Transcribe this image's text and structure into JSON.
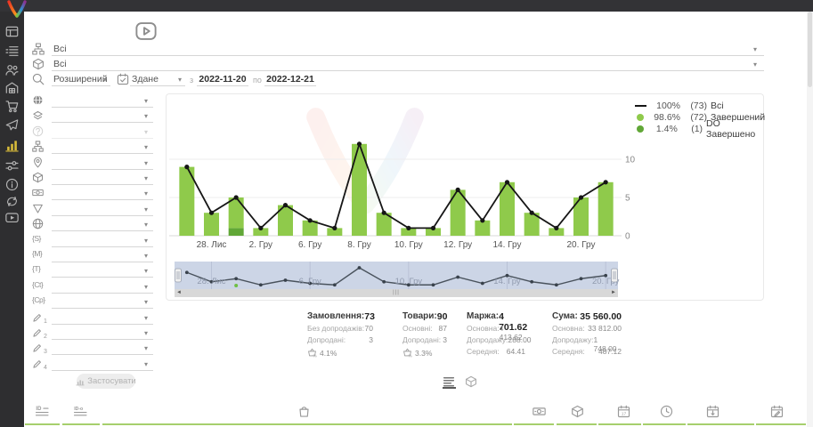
{
  "colors": {
    "bar_light": "#8fca4b",
    "bar_dark": "#61a737",
    "line": "#161616",
    "sidebar_active": "#d9bc3a",
    "navigator_bg": "#ccd5e6",
    "table_green": "#a6cf6d"
  },
  "sidebar": {
    "items": [
      {
        "icon": "dashboard"
      },
      {
        "icon": "orders-list"
      },
      {
        "icon": "customers"
      },
      {
        "icon": "warehouse"
      },
      {
        "icon": "cart"
      },
      {
        "icon": "campaigns"
      },
      {
        "icon": "analytics",
        "active": true
      },
      {
        "icon": "settings"
      },
      {
        "icon": "info"
      },
      {
        "icon": "sync"
      },
      {
        "icon": "video"
      }
    ]
  },
  "filters": {
    "top_rows": [
      {
        "icon": "sitemap",
        "value": "Всі"
      },
      {
        "icon": "package",
        "value": "Всі"
      }
    ],
    "search_row": {
      "mode": "Розширений",
      "date_type": "Здане",
      "from_label": "з",
      "from": "2022-11-20",
      "to_label": "по",
      "to": "2022-12-21"
    },
    "rows": [
      {
        "icon": "globe-solid"
      },
      {
        "icon": "layers-sort"
      },
      {
        "icon": "help",
        "disabled": true
      },
      {
        "icon": "sitemap"
      },
      {
        "icon": "map-pin"
      },
      {
        "icon": "package"
      },
      {
        "icon": "banknote"
      },
      {
        "icon": "funnel"
      },
      {
        "icon": "globe-wire"
      },
      {
        "brace": "{S}"
      },
      {
        "brace": "{M}"
      },
      {
        "brace": "{T}"
      },
      {
        "brace": "{Ct}"
      },
      {
        "brace": "{Cp}"
      },
      {
        "pencil": "1"
      },
      {
        "pencil": "2"
      },
      {
        "pencil": "3"
      },
      {
        "pencil": "4"
      }
    ],
    "apply_label": "Застосувати"
  },
  "chart_data": {
    "type": "bar",
    "title": "",
    "xlabel": "",
    "ylabel": "",
    "grid": true,
    "legend_position": "top-right",
    "yticks": [
      0,
      5,
      10
    ],
    "ylim": [
      0,
      12.5
    ],
    "x_labels": [
      "",
      "28. Лис",
      "",
      "2. Гру",
      "",
      "6. Гру",
      "",
      "8. Гру",
      "",
      "10. Гру",
      "",
      "12. Гру",
      "",
      "14. Гру",
      "",
      "",
      "20. Гру",
      ""
    ],
    "navigator_labels": [
      "",
      "28. Лис",
      "",
      "",
      "",
      "6. Гру",
      "",
      "",
      "",
      "10. Гру",
      "",
      "",
      "",
      "14. Гру",
      "",
      "",
      "",
      "20. Гру"
    ],
    "series": [
      {
        "name": "Всі",
        "type": "line",
        "color": "#161616",
        "values": [
          9,
          3,
          5,
          1,
          4,
          2,
          1,
          12,
          3,
          1,
          1,
          6,
          2,
          7,
          3,
          1,
          5,
          7
        ]
      },
      {
        "name": "Завершений",
        "type": "column",
        "color": "#8fca4b",
        "values": [
          9,
          3,
          4,
          1,
          4,
          2,
          1,
          12,
          3,
          1,
          1,
          6,
          2,
          7,
          3,
          1,
          5,
          7
        ]
      },
      {
        "name": "DO Завершено",
        "type": "column",
        "color": "#61a737",
        "values": [
          0,
          0,
          1,
          0,
          0,
          0,
          0,
          0,
          0,
          0,
          0,
          0,
          0,
          0,
          0,
          0,
          0,
          0
        ]
      }
    ],
    "legend": [
      {
        "marker": "line",
        "color": "#161616",
        "pct": "100%",
        "count": "(73)",
        "label": "Всі"
      },
      {
        "marker": "dot",
        "color": "#8fca4b",
        "pct": "98.6%",
        "count": "(72)",
        "label": "Завершений"
      },
      {
        "marker": "dot",
        "color": "#61a737",
        "pct": "1.4%",
        "count": "(1)",
        "label": "DO Завершено"
      }
    ]
  },
  "stats": {
    "blocks": [
      {
        "title": "Замовлення:",
        "value": "73",
        "rows": [
          [
            "Без допродажів:",
            "70"
          ],
          [
            "Допродані:",
            "3"
          ]
        ],
        "footer_icon": "basket-percent",
        "footer": "4.1%"
      },
      {
        "title": "Товари:",
        "value": "90",
        "rows": [
          [
            "Основні:",
            "87"
          ],
          [
            "Допродані:",
            "3"
          ]
        ],
        "footer_icon": "basket-percent",
        "footer": "3.3%"
      },
      {
        "title": "Маржа:",
        "value": "4 701.62",
        "rows": [
          [
            "Основна:",
            "4 413.62"
          ],
          [
            "Допродажу:",
            "288.00"
          ],
          [
            "Середня:",
            "64.41"
          ]
        ]
      },
      {
        "title": "Сума:",
        "value": "35 560.00",
        "rows": [
          [
            "Основна:",
            "33 812.00"
          ],
          [
            "Допродажу:",
            "1 748.00"
          ],
          [
            "Середня:",
            "487.12"
          ]
        ]
      }
    ]
  },
  "view_toggle": {
    "items": [
      {
        "icon": "list-view",
        "active": true
      },
      {
        "icon": "package",
        "active": false
      }
    ]
  },
  "orders_table": {
    "columns": [
      {
        "icon": "id-lines"
      },
      {
        "icon": "id-o-lines"
      },
      {
        "icon": "bag"
      },
      {
        "icon": "banknote"
      },
      {
        "icon": "package"
      },
      {
        "icon": "calendar-date"
      },
      {
        "icon": "clock"
      },
      {
        "icon": "calendar-import"
      },
      {
        "icon": "calendar-edit"
      }
    ]
  }
}
